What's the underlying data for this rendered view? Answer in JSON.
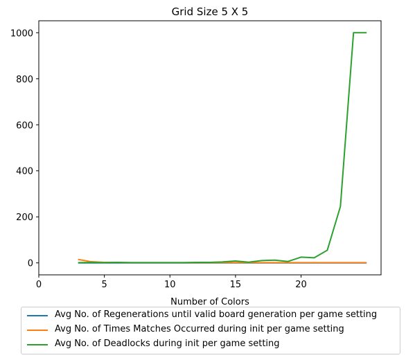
{
  "chart_data": {
    "type": "line",
    "title": "Grid Size 5 X 5",
    "xlabel": "Number of Colors",
    "ylabel": "",
    "xlim": [
      0,
      26.1
    ],
    "ylim": [
      -52,
      1052
    ],
    "xticks": [
      0,
      5,
      10,
      15,
      20
    ],
    "yticks": [
      0,
      200,
      400,
      600,
      800,
      1000
    ],
    "grid": false,
    "legend_position": "below",
    "x": [
      3,
      4,
      5,
      6,
      7,
      8,
      9,
      10,
      11,
      12,
      13,
      14,
      15,
      16,
      17,
      18,
      19,
      20,
      21,
      22,
      23,
      24,
      25
    ],
    "series": [
      {
        "name": "Avg No. of Regenerations until valid board generation per game setting",
        "color": "#1f77b4",
        "values": [
          0,
          0,
          0,
          0,
          0,
          0,
          0,
          0,
          0,
          0,
          0,
          0,
          0,
          0,
          0,
          0,
          0,
          0,
          0,
          0,
          0,
          0,
          0
        ]
      },
      {
        "name": "Avg No. of Times Matches Occurred during init per game setting",
        "color": "#ff7f0e",
        "values": [
          15,
          5,
          2,
          2,
          1,
          1,
          1,
          1,
          1,
          1,
          1,
          1,
          1,
          1,
          1,
          1,
          1,
          1,
          1,
          1,
          1,
          1,
          1
        ]
      },
      {
        "name": "Avg No. of Deadlocks during init per game setting",
        "color": "#2ca02c",
        "values": [
          1,
          2,
          1,
          2,
          1,
          1,
          1,
          1,
          1,
          2,
          2,
          4,
          8,
          3,
          10,
          12,
          6,
          25,
          22,
          55,
          245,
          1000,
          1000
        ]
      }
    ]
  }
}
